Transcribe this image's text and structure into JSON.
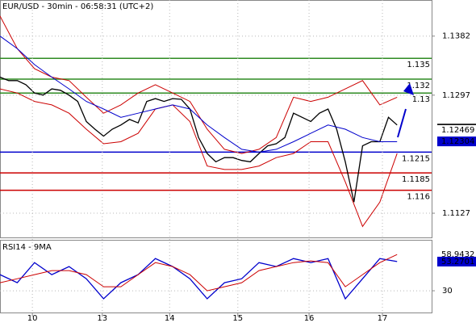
{
  "chart_data": [
    {
      "type": "line",
      "title": "EUR/USD - 30min - 06:58:31 (UTC+2)",
      "xlim": [
        0,
        100
      ],
      "ylim": [
        1.1091,
        1.1434
      ],
      "yticks": [
        1.1127,
        1.1297,
        1.1382
      ],
      "grid": true,
      "levels": [
        {
          "value": 1.135,
          "color": "#2e8b22"
        },
        {
          "value": 1.132,
          "color": "#2e8b22"
        },
        {
          "value": 1.13,
          "color": "#2e8b22"
        },
        {
          "value": 1.1215,
          "color": "#0000cc"
        },
        {
          "value": 1.1185,
          "color": "#cc0000"
        },
        {
          "value": 1.116,
          "color": "#cc0000"
        }
      ],
      "series": [
        {
          "color": "#000000",
          "x": [
            0,
            2,
            4,
            6,
            8,
            10,
            12,
            14,
            16,
            18,
            20,
            22,
            24,
            26,
            28,
            30,
            32,
            34,
            36,
            38,
            40,
            42,
            44,
            46,
            48,
            50,
            52,
            54,
            56,
            58,
            60,
            62,
            64,
            66,
            68,
            70,
            72,
            74,
            76,
            78,
            80,
            82,
            84,
            86,
            88,
            90,
            92
          ],
          "values": [
            1.1323,
            1.1318,
            1.1318,
            1.1312,
            1.13,
            1.1297,
            1.1306,
            1.1304,
            1.1297,
            1.1288,
            1.1259,
            1.1248,
            1.1238,
            1.1248,
            1.1254,
            1.1262,
            1.1257,
            1.1288,
            1.1292,
            1.1288,
            1.1292,
            1.1291,
            1.1277,
            1.1236,
            1.1213,
            1.1201,
            1.1207,
            1.1207,
            1.1203,
            1.1201,
            1.1213,
            1.1224,
            1.1227,
            1.1236,
            1.1271,
            1.1265,
            1.1259,
            1.1271,
            1.1277,
            1.1248,
            1.1201,
            1.1143,
            1.1224,
            1.123,
            1.123,
            1.1265,
            1.1254
          ]
        },
        {
          "color": "#cc0000",
          "x": [
            0,
            4,
            8,
            12,
            16,
            20,
            24,
            28,
            32,
            36,
            40,
            44,
            48,
            52,
            56,
            60,
            64,
            68,
            72,
            76,
            80,
            84,
            88,
            92
          ],
          "values": [
            1.1411,
            1.1364,
            1.1335,
            1.1323,
            1.1318,
            1.1294,
            1.1271,
            1.1283,
            1.13,
            1.1312,
            1.13,
            1.1288,
            1.1248,
            1.1219,
            1.1213,
            1.1219,
            1.1236,
            1.1294,
            1.1288,
            1.1294,
            1.1306,
            1.1318,
            1.1283,
            1.1294
          ]
        },
        {
          "color": "#cc0000",
          "x": [
            0,
            4,
            8,
            12,
            16,
            20,
            24,
            28,
            32,
            36,
            40,
            44,
            48,
            52,
            56,
            60,
            64,
            68,
            72,
            76,
            80,
            84,
            88,
            92
          ],
          "values": [
            1.1306,
            1.13,
            1.1288,
            1.1283,
            1.1271,
            1.1248,
            1.1227,
            1.123,
            1.1242,
            1.1277,
            1.1283,
            1.1259,
            1.1195,
            1.119,
            1.119,
            1.1195,
            1.1207,
            1.1213,
            1.123,
            1.123,
            1.1172,
            1.1108,
            1.1143,
            1.1213
          ]
        },
        {
          "color": "#0000cc",
          "x": [
            0,
            4,
            8,
            12,
            16,
            20,
            24,
            28,
            32,
            36,
            40,
            44,
            48,
            52,
            56,
            60,
            64,
            68,
            72,
            76,
            80,
            84,
            88,
            92
          ],
          "values": [
            1.1382,
            1.1364,
            1.1341,
            1.1323,
            1.1306,
            1.1288,
            1.1277,
            1.1265,
            1.1271,
            1.1277,
            1.1283,
            1.1277,
            1.1254,
            1.1236,
            1.1219,
            1.1215,
            1.1219,
            1.123,
            1.1242,
            1.1254,
            1.1248,
            1.1236,
            1.123,
            1.123
          ]
        }
      ],
      "price_labels": [
        {
          "value": 1.12488,
          "style": "box",
          "color": "#000000"
        },
        {
          "value": 1.12469,
          "style": "text",
          "color": "#cc0000"
        },
        {
          "value": 1.12304,
          "style": "box",
          "color": "#0000cc"
        }
      ]
    },
    {
      "type": "line",
      "title": "RSI14 - 9MA",
      "xlim": [
        0,
        100
      ],
      "ylim": [
        12,
        70
      ],
      "yticks": [
        30
      ],
      "grid": true,
      "xticks": [
        {
          "value": 7.5,
          "label": "10"
        },
        {
          "value": 23.7,
          "label": "13"
        },
        {
          "value": 39.3,
          "label": "14"
        },
        {
          "value": 55.1,
          "label": "15"
        },
        {
          "value": 71.6,
          "label": "16"
        },
        {
          "value": 88.6,
          "label": "17"
        }
      ],
      "series": [
        {
          "color": "#0000cc",
          "x": [
            0,
            4,
            8,
            12,
            16,
            20,
            24,
            28,
            32,
            36,
            40,
            44,
            48,
            52,
            56,
            60,
            64,
            68,
            72,
            76,
            80,
            84,
            88,
            92
          ],
          "values": [
            42.9,
            36.4,
            52.5,
            42.9,
            49.3,
            39.6,
            23.6,
            36.4,
            42.9,
            55.7,
            49.3,
            39.6,
            23.6,
            36.4,
            39.6,
            52.5,
            49.3,
            55.7,
            52.5,
            55.7,
            23.6,
            39.6,
            55.7,
            53.3
          ]
        },
        {
          "color": "#cc0000",
          "x": [
            0,
            4,
            8,
            12,
            16,
            20,
            24,
            28,
            32,
            36,
            40,
            44,
            48,
            52,
            56,
            60,
            64,
            68,
            72,
            76,
            80,
            84,
            88,
            92
          ],
          "values": [
            36.4,
            39.6,
            42.9,
            46.1,
            46.1,
            42.9,
            33.2,
            33.2,
            42.9,
            52.5,
            49.3,
            42.9,
            30,
            33.2,
            36.4,
            46.1,
            49.3,
            52.5,
            53.8,
            52.5,
            33.2,
            42.9,
            52.5,
            58.9
          ]
        }
      ],
      "price_labels": [
        {
          "value": 58.9432,
          "style": "text",
          "color": "#cc0000"
        },
        {
          "value": 53.2701,
          "style": "box",
          "color": "#0000cc"
        }
      ]
    }
  ]
}
